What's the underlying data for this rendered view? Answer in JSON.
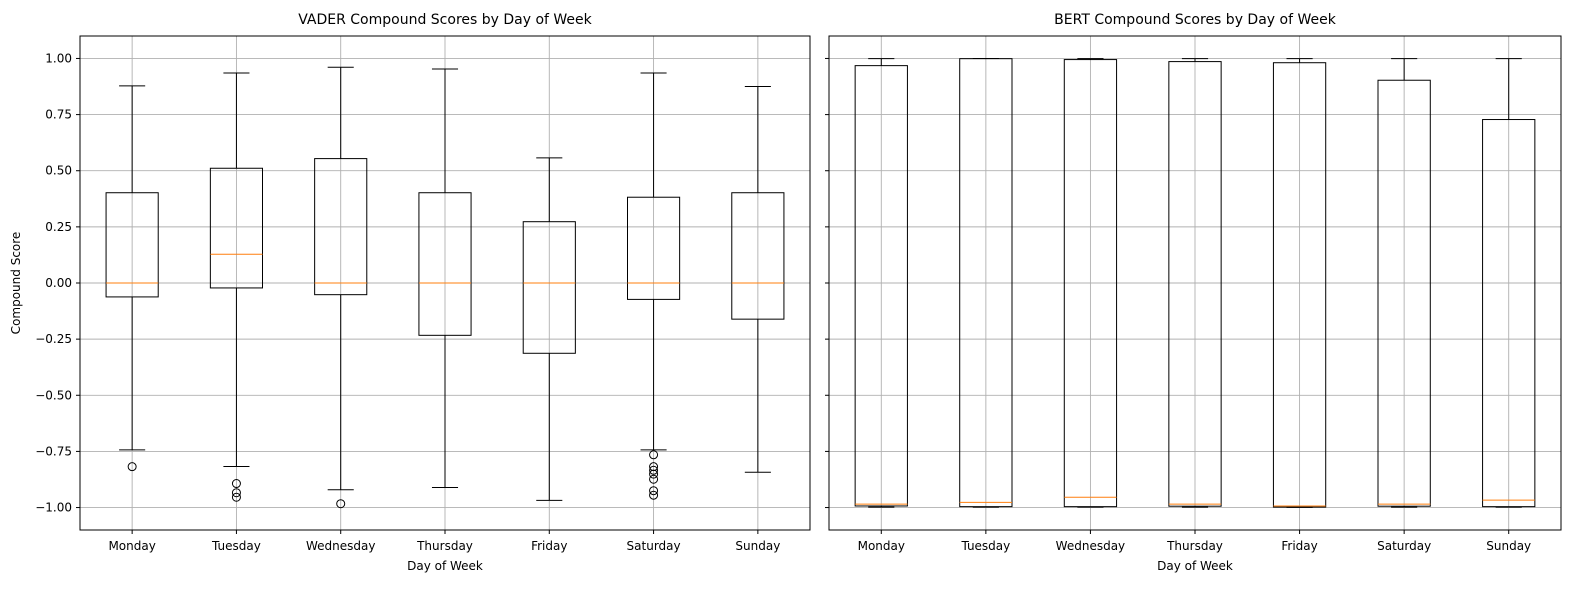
{
  "chart_data": [
    {
      "type": "boxplot",
      "title": "VADER Compound Scores by Day of Week",
      "xlabel": "Day of Week",
      "ylabel": "Compound Score",
      "categories": [
        "Monday",
        "Tuesday",
        "Wednesday",
        "Thursday",
        "Friday",
        "Saturday",
        "Sunday"
      ],
      "ylim": [
        -1.1,
        1.1
      ],
      "yticks": [
        -1.0,
        -0.75,
        -0.5,
        -0.25,
        0.0,
        0.25,
        0.5,
        0.75,
        1.0
      ],
      "ytick_labels": [
        "−1.00",
        "−0.75",
        "−0.50",
        "−0.25",
        "0.00",
        "0.25",
        "0.50",
        "0.75",
        "1.00"
      ],
      "grid": true,
      "boxes": [
        {
          "whisker_low": -0.743,
          "q1": -0.062,
          "median": 0.0,
          "q3": 0.402,
          "whisker_high": 0.878,
          "outliers": [
            -0.818
          ]
        },
        {
          "whisker_low": -0.817,
          "q1": -0.022,
          "median": 0.128,
          "q3": 0.511,
          "whisker_high": 0.935,
          "outliers": [
            -0.893,
            -0.934,
            -0.954
          ]
        },
        {
          "whisker_low": -0.921,
          "q1": -0.052,
          "median": 0.0,
          "q3": 0.554,
          "whisker_high": 0.961,
          "outliers": [
            -0.983
          ]
        },
        {
          "whisker_low": -0.911,
          "q1": -0.233,
          "median": 0.0,
          "q3": 0.402,
          "whisker_high": 0.953,
          "outliers": []
        },
        {
          "whisker_low": -0.968,
          "q1": -0.313,
          "median": 0.0,
          "q3": 0.273,
          "whisker_high": 0.557,
          "outliers": []
        },
        {
          "whisker_low": -0.743,
          "q1": -0.073,
          "median": 0.0,
          "q3": 0.382,
          "whisker_high": 0.935,
          "outliers": [
            -0.765,
            -0.818,
            -0.834,
            -0.851,
            -0.874,
            -0.925,
            -0.945
          ]
        },
        {
          "whisker_low": -0.843,
          "q1": -0.161,
          "median": 0.0,
          "q3": 0.402,
          "whisker_high": 0.875,
          "outliers": []
        }
      ]
    },
    {
      "type": "boxplot",
      "title": "BERT Compound Scores by Day of Week",
      "xlabel": "Day of Week",
      "ylabel": "",
      "categories": [
        "Monday",
        "Tuesday",
        "Wednesday",
        "Thursday",
        "Friday",
        "Saturday",
        "Sunday"
      ],
      "ylim": [
        -1.1,
        1.1
      ],
      "yticks": [
        -1.0,
        -0.75,
        -0.5,
        -0.25,
        0.0,
        0.25,
        0.5,
        0.75,
        1.0
      ],
      "ytick_labels": [],
      "grid": true,
      "boxes": [
        {
          "whisker_low": -0.998,
          "q1": -0.993,
          "median": -0.985,
          "q3": 0.968,
          "whisker_high": 0.999,
          "outliers": []
        },
        {
          "whisker_low": -0.998,
          "q1": -0.996,
          "median": -0.977,
          "q3": 0.999,
          "whisker_high": 1.0,
          "outliers": []
        },
        {
          "whisker_low": -0.998,
          "q1": -0.996,
          "median": -0.954,
          "q3": 0.995,
          "whisker_high": 0.999,
          "outliers": []
        },
        {
          "whisker_low": -0.998,
          "q1": -0.994,
          "median": -0.985,
          "q3": 0.986,
          "whisker_high": 0.999,
          "outliers": []
        },
        {
          "whisker_low": -0.999,
          "q1": -0.998,
          "median": -0.993,
          "q3": 0.981,
          "whisker_high": 0.999,
          "outliers": []
        },
        {
          "whisker_low": -0.998,
          "q1": -0.994,
          "median": -0.985,
          "q3": 0.903,
          "whisker_high": 0.999,
          "outliers": []
        },
        {
          "whisker_low": -0.998,
          "q1": -0.996,
          "median": -0.967,
          "q3": 0.728,
          "whisker_high": 0.999,
          "outliers": []
        }
      ]
    }
  ],
  "colors": {
    "box": "#000000",
    "median": "#ff7f0e",
    "grid": "#b0b0b0",
    "background": "#ffffff"
  }
}
